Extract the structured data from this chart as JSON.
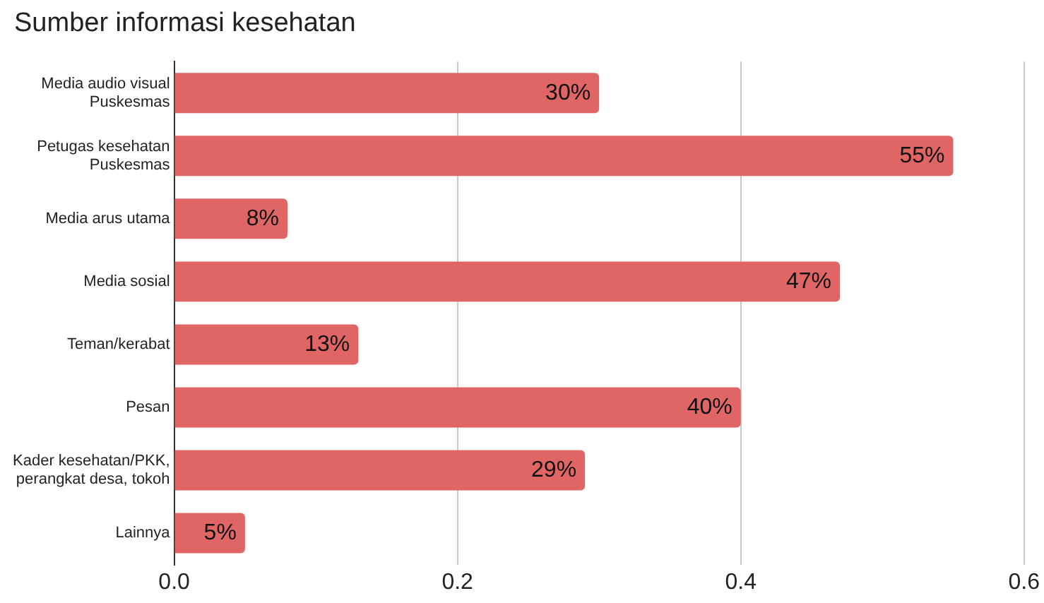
{
  "chart_data": {
    "type": "bar",
    "orientation": "horizontal",
    "title": "Sumber informasi kesehatan",
    "categories": [
      "Media audio visual Puskesmas",
      "Petugas kesehatan Puskesmas",
      "Media arus utama",
      "Media sosial",
      "Teman/kerabat",
      "Pesan",
      "Kader kesehatan/PKK, perangkat desa, tokoh",
      "Lainnya"
    ],
    "values": [
      0.3,
      0.55,
      0.08,
      0.47,
      0.13,
      0.4,
      0.29,
      0.05
    ],
    "value_labels": [
      "30%",
      "55%",
      "8%",
      "47%",
      "13%",
      "40%",
      "29%",
      "5%"
    ],
    "color": "#e06666",
    "xlim": [
      0,
      0.6
    ],
    "xticks": [
      {
        "value": 0,
        "label": "0.0"
      },
      {
        "value": 0.2,
        "label": "0.2"
      },
      {
        "value": 0.4,
        "label": "0.4"
      },
      {
        "value": 0.6,
        "label": "0.6"
      }
    ],
    "grid": "x",
    "legend": false
  }
}
